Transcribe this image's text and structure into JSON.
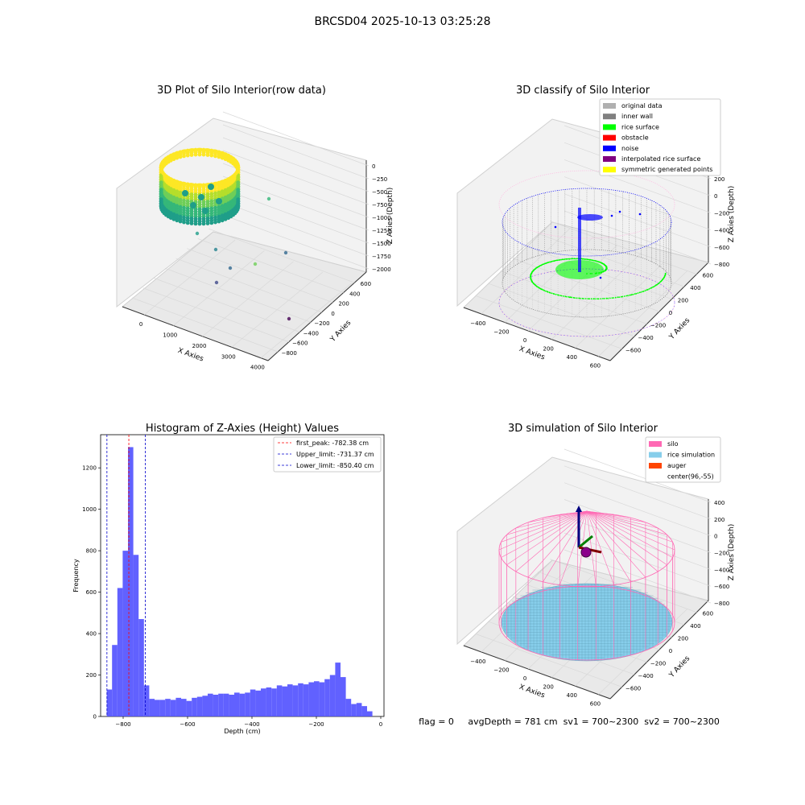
{
  "figure": {
    "suptitle": "BRCSD04 2025-10-13 03:25:28",
    "status_line": "flag = 0     avgDepth = 781 cm  sv1 = 700~2300  sv2 = 700~2300"
  },
  "colors": {
    "pane": "#f2f2f2",
    "pane_dark": "#e9e9e9",
    "grid": "#d9d9d9",
    "hist_bar": "#5050ff",
    "first_peak": "#ff0000",
    "limits": "#0000cc",
    "viridis": [
      "#fde725",
      "#b5de2b",
      "#6ece58",
      "#35b779",
      "#1f9e89",
      "#26828e",
      "#31688e",
      "#3e4989",
      "#482878",
      "#440154"
    ]
  },
  "axes3d": {
    "common": {
      "xlabel": "X Axies",
      "ylabel": "Y Axies",
      "zlabel": "Z Axies (Depth)"
    },
    "raw": {
      "title": "3D Plot of Silo Interior(row data)",
      "xticks": [
        "0",
        "1000",
        "2000",
        "3000",
        "4000"
      ],
      "yticks": [
        "600",
        "400",
        "200",
        "0",
        "−200",
        "−400",
        "−600",
        "−800"
      ],
      "zticks": [
        "0",
        "−250",
        "−500",
        "−750",
        "−1000",
        "−1250",
        "−1500",
        "−1750",
        "−2000"
      ]
    },
    "classify": {
      "title": "3D classify of Silo Interior",
      "xticks": [
        "−400",
        "−200",
        "0",
        "200",
        "400",
        "600"
      ],
      "yticks": [
        "600",
        "400",
        "200",
        "0",
        "−200",
        "−400",
        "−600"
      ],
      "zticks": [
        "200",
        "0",
        "−200",
        "−400",
        "−600",
        "−800"
      ],
      "legend": [
        {
          "label": "original data",
          "color": "#b0b0b0"
        },
        {
          "label": "inner wall",
          "color": "#808080"
        },
        {
          "label": "rice surface",
          "color": "#00ff00"
        },
        {
          "label": "obstacle",
          "color": "#ff0000"
        },
        {
          "label": "noise",
          "color": "#0000ff"
        },
        {
          "label": "interpolated rice surface",
          "color": "#800080"
        },
        {
          "label": "symmetric generated points",
          "color": "#ffff00"
        }
      ]
    },
    "simulation": {
      "title": "3D simulation of Silo Interior",
      "xticks": [
        "−400",
        "−200",
        "0",
        "200",
        "400",
        "600"
      ],
      "yticks": [
        "600",
        "400",
        "200",
        "0",
        "−200",
        "−400",
        "−600"
      ],
      "zticks": [
        "400",
        "200",
        "0",
        "−200",
        "−400",
        "−600",
        "−800"
      ],
      "legend": [
        {
          "label": "silo",
          "color": "#ff69b4"
        },
        {
          "label": "rice simulation",
          "color": "#87ceeb"
        },
        {
          "label": "auger",
          "color": "#ff4500"
        },
        {
          "label": "center(96,-55)",
          "color": ""
        }
      ]
    }
  },
  "chart_data": {
    "type": "bar",
    "title": "Histogram of Z-Axies (Height) Values",
    "xlabel": "Depth (cm)",
    "ylabel": "Frequency",
    "xlim": [
      -870,
      10
    ],
    "ylim": [
      0,
      1360
    ],
    "xticks": [
      -800,
      -600,
      -400,
      -200,
      0
    ],
    "xtick_labels": [
      "−800",
      "−600",
      "−400",
      "−200",
      "0"
    ],
    "yticks": [
      0,
      200,
      400,
      600,
      800,
      1000,
      1200
    ],
    "bin_start": -851,
    "bin_width": 16.5,
    "values": [
      130,
      345,
      620,
      800,
      1300,
      780,
      470,
      150,
      85,
      80,
      80,
      85,
      80,
      90,
      85,
      75,
      90,
      95,
      100,
      110,
      105,
      110,
      110,
      105,
      115,
      110,
      115,
      130,
      125,
      135,
      140,
      135,
      150,
      145,
      155,
      150,
      160,
      155,
      165,
      170,
      165,
      180,
      200,
      260,
      190,
      85,
      60,
      65,
      50,
      25
    ],
    "vlines": [
      {
        "label": "first_peak: -782.38 cm",
        "x": -782.38,
        "color": "#ff0000"
      },
      {
        "label": "Upper_limit: -731.37 cm",
        "x": -731.37,
        "color": "#0000cc"
      },
      {
        "label": "Lower_limit: -850.40 cm",
        "x": -850.4,
        "color": "#0000cc"
      }
    ],
    "legend_position": "top-right"
  }
}
